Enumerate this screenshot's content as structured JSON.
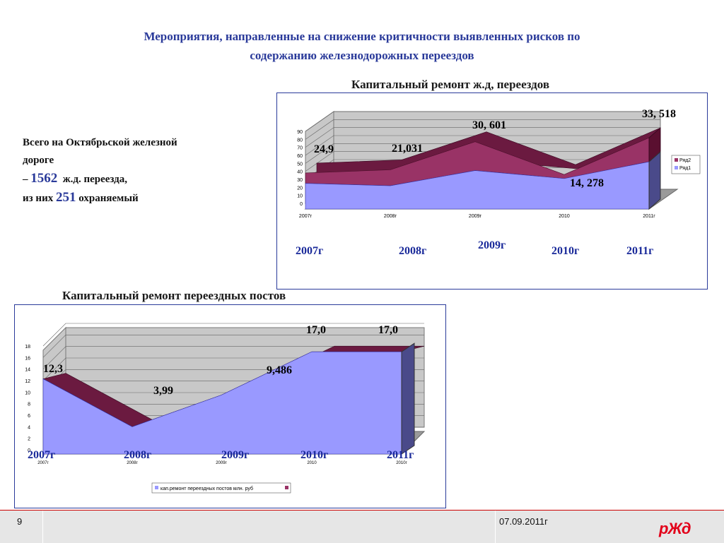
{
  "page": {
    "title_line1": "Мероприятия, направленные на снижение критичности выявленных рисков по",
    "title_line2": "содержанию железнодорожных переездов",
    "info": {
      "line1": "Всего на Октябрьской железной",
      "line2": "дороге",
      "line3_prefix": "– ",
      "line3_num": "1562",
      "line3_suffix": "  ж.д. переезда,",
      "line4_prefix": "из них ",
      "line4_num": "251",
      "line4_suffix": " охраняемый"
    },
    "page_number": "9",
    "date": "07.09.2011г",
    "logo": "РЖД"
  },
  "chart_data": [
    {
      "type": "area",
      "title": "Капитальный ремонт ж.д, переездов",
      "categories": [
        "2007г",
        "2008г",
        "2009г",
        "2010",
        "2011г"
      ],
      "category_labels": [
        "2007г",
        "2008г",
        "2009г",
        "2010г",
        "2011г"
      ],
      "yticks": [
        "0",
        "10",
        "20",
        "30",
        "40",
        "50",
        "60",
        "70",
        "80",
        "90"
      ],
      "ylim": [
        0,
        90
      ],
      "series": [
        {
          "name": "Ряд1",
          "values": [
            25,
            22,
            41,
            31,
            52
          ],
          "color": "#9999ff"
        },
        {
          "name": "Ряд2",
          "values": [
            13,
            20,
            36,
            5,
            30
          ],
          "color": "#993366"
        }
      ],
      "data_labels": [
        "24,9",
        "21,031",
        "30, 601",
        "14, 278",
        "33, 518"
      ],
      "legend_position": "right"
    },
    {
      "type": "area",
      "title": "Капитальный ремонт переездных постов",
      "categories": [
        "2007г",
        "2008г",
        "2009г",
        "2010",
        "2010г"
      ],
      "category_labels": [
        "2007г",
        "2008г",
        "2009г",
        "2010г",
        "2011г"
      ],
      "yticks": [
        "0",
        "2",
        "4",
        "6",
        "8",
        "10",
        "12",
        "14",
        "16",
        "18"
      ],
      "ylim": [
        0,
        18
      ],
      "series": [
        {
          "name": "кап.ремонт переездных постов млн. руб",
          "values": [
            12.3,
            3.99,
            9.486,
            17.0,
            17.0
          ],
          "color": "#9999ff"
        }
      ],
      "data_labels": [
        "12,3",
        "3,99",
        "9,486",
        "17,0",
        "17,0"
      ],
      "legend_position": "bottom"
    }
  ]
}
